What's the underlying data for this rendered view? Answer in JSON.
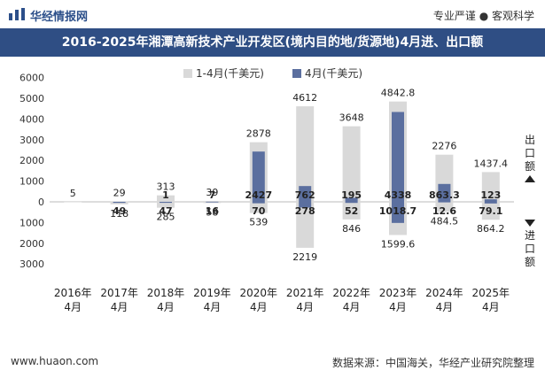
{
  "header": {
    "brand": "华经情报网",
    "slogan": "专业严谨 ● 客观科学",
    "title": "2016-2025年湘潭高新技术产业开发区(境内目的地/货源地)4月进、出口额"
  },
  "footer": {
    "website": "www.huaon.com",
    "source": "数据来源：中国海关，华经产业研究院整理"
  },
  "colors": {
    "ytd": "#d9d9d9",
    "month": "#5b6f9f",
    "title_bg": "#2f4e84"
  },
  "chart_data": {
    "type": "bar",
    "categories": [
      "2016年\n4月",
      "2017年\n4月",
      "2018年\n4月",
      "2019年\n4月",
      "2020年\n4月",
      "2021年\n4月",
      "2022年\n4月",
      "2023年\n4月",
      "2024年\n4月",
      "2025年\n4月"
    ],
    "legend": [
      "1-4月(千美元)",
      "4月(千美元)"
    ],
    "legend_position": "top",
    "right_labels": {
      "export": "出口额",
      "import": "进口额"
    },
    "ylim": [
      -3000,
      6000
    ],
    "yticks": [
      6000,
      5000,
      4000,
      3000,
      2000,
      1000,
      0,
      -1000,
      -2000,
      -3000
    ],
    "ytick_labels": [
      "6000",
      "5000",
      "4000",
      "3000",
      "2000",
      "1000",
      "0",
      "1000",
      "2000",
      "3000"
    ],
    "export_ytd": [
      5,
      29,
      313,
      39,
      2878,
      4612,
      3648,
      4842.8,
      2276,
      1437.4
    ],
    "export_month": [
      null,
      null,
      1,
      7,
      2427,
      762,
      195,
      4338,
      863.3,
      123
    ],
    "import_ytd": [
      null,
      118,
      285,
      58,
      539,
      2219,
      846,
      1599.6,
      484.5,
      864.2
    ],
    "import_month": [
      null,
      49,
      47,
      16,
      70,
      278,
      52,
      1018.7,
      12.6,
      79.1
    ]
  }
}
